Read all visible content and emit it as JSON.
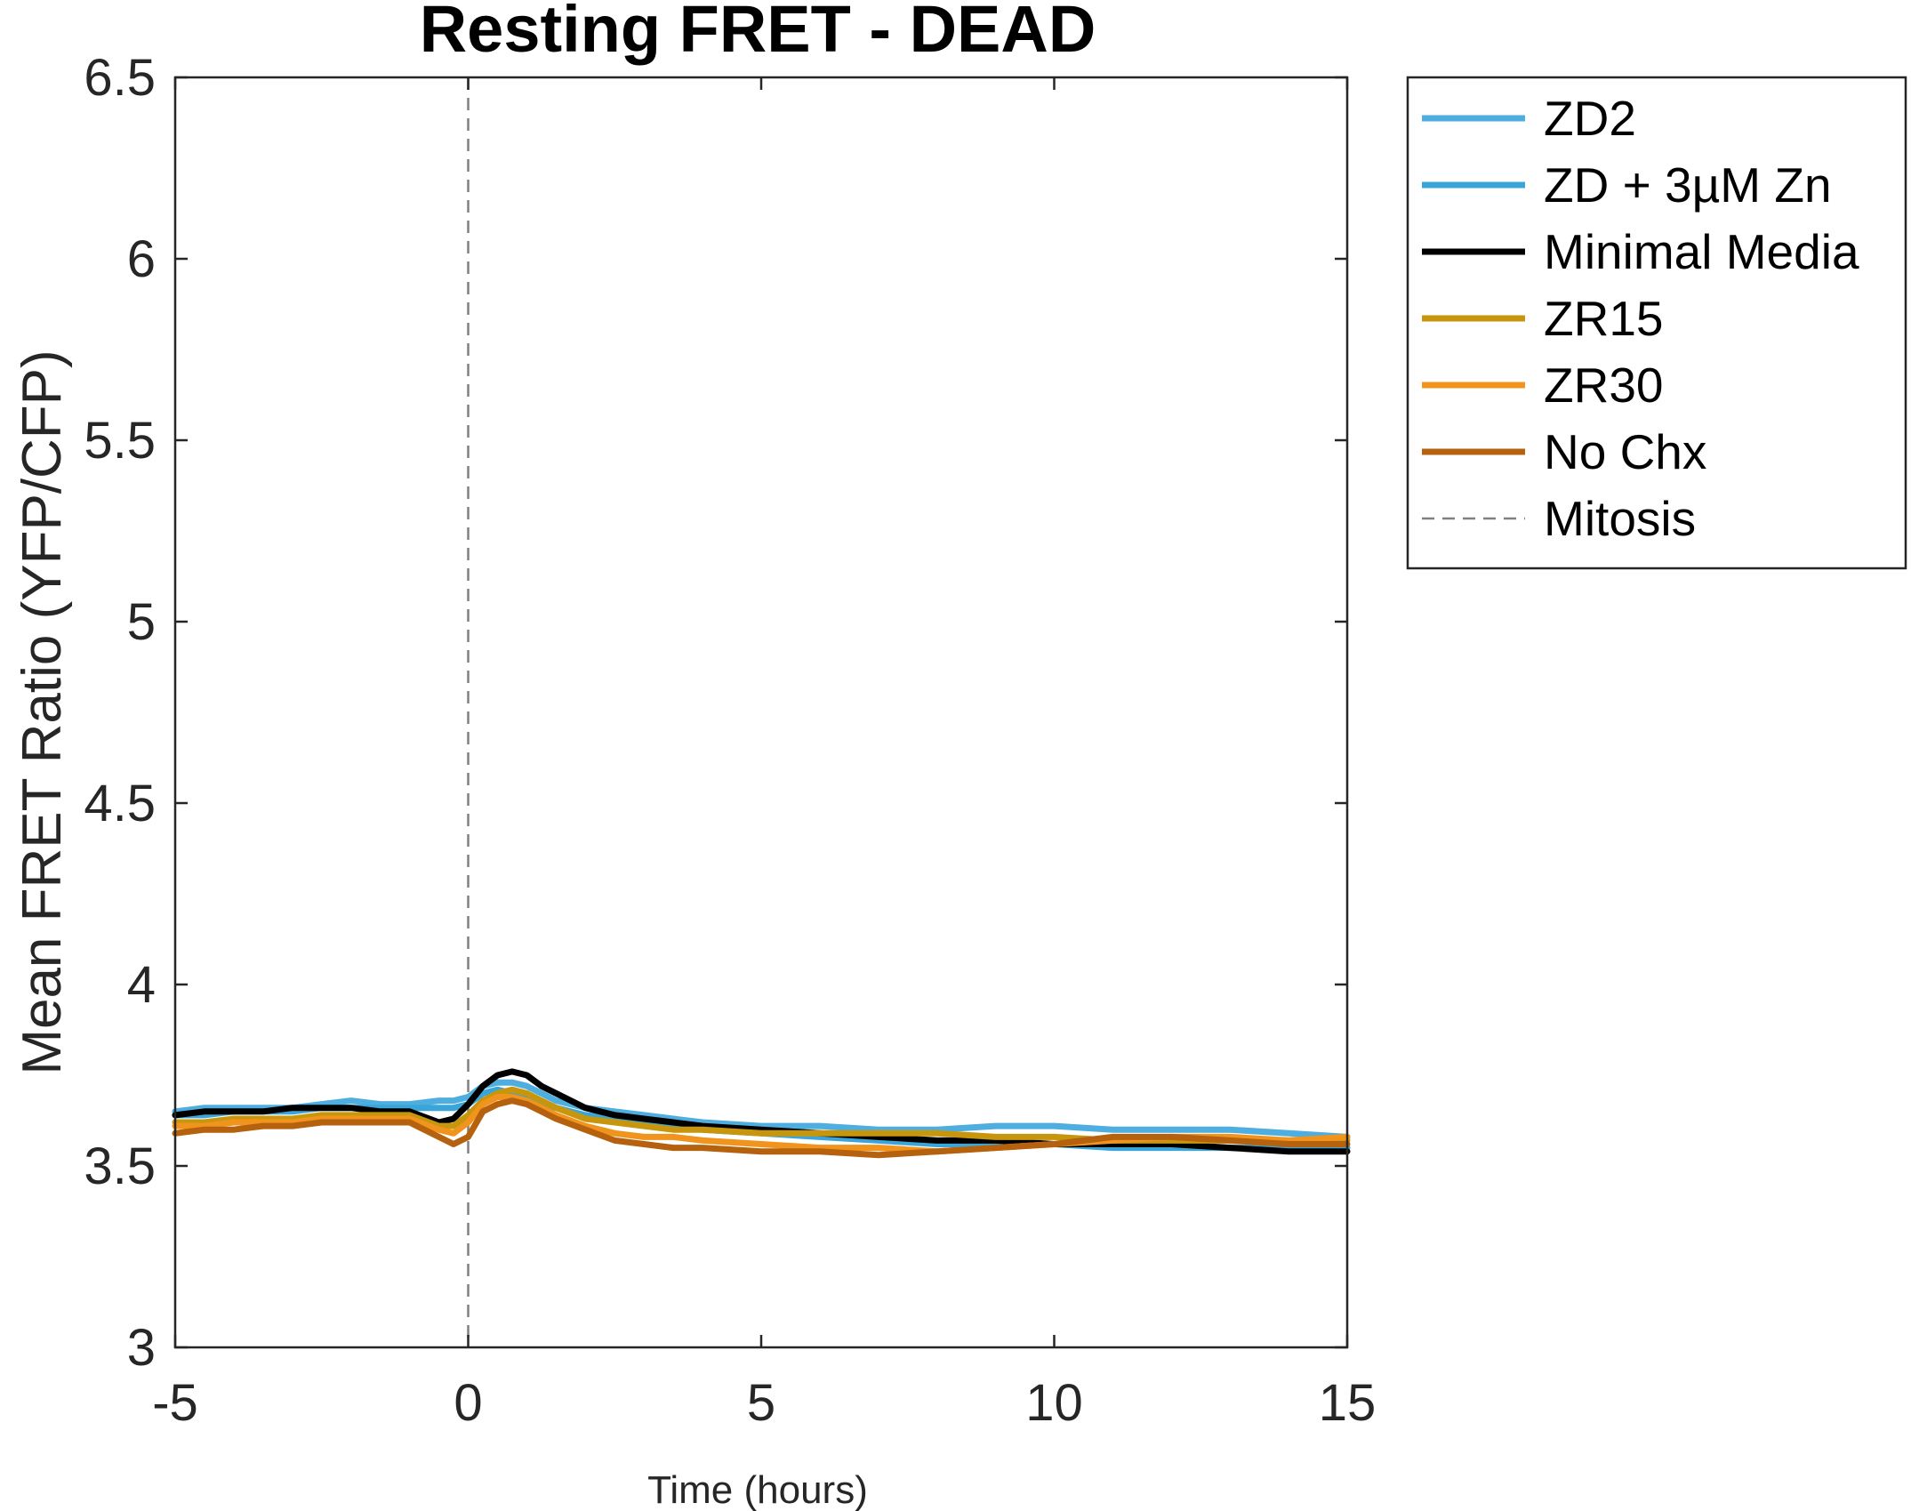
{
  "chart_data": {
    "type": "line",
    "title": "Resting FRET - DEAD",
    "xlabel": "Time (hours)",
    "ylabel": "Mean FRET Ratio (YFP/CFP)",
    "xlim": [
      -5,
      15
    ],
    "ylim": [
      3,
      6.5
    ],
    "xticks": [
      -5,
      0,
      5,
      10,
      15
    ],
    "xtick_labels": [
      "-5",
      "0",
      "5",
      "10",
      "15"
    ],
    "yticks": [
      3,
      3.5,
      4,
      4.5,
      5,
      5.5,
      6,
      6.5
    ],
    "ytick_labels": [
      "3",
      "3.5",
      "4",
      "4.5",
      "5",
      "5.5",
      "6",
      "6.5"
    ],
    "grid": false,
    "legend_position": "outside-top-right",
    "x": [
      -5,
      -4.5,
      -4,
      -3.5,
      -3,
      -2.5,
      -2,
      -1.5,
      -1,
      -0.5,
      -0.25,
      0,
      0.25,
      0.5,
      0.75,
      1,
      1.25,
      1.5,
      2,
      2.5,
      3,
      3.5,
      4,
      5,
      6,
      7,
      8,
      9,
      10,
      11,
      12,
      13,
      14,
      15
    ],
    "series": [
      {
        "name": "ZD2",
        "color": "#4DAEDF",
        "values": [
          3.65,
          3.66,
          3.66,
          3.66,
          3.66,
          3.67,
          3.68,
          3.67,
          3.67,
          3.68,
          3.68,
          3.69,
          3.72,
          3.73,
          3.73,
          3.72,
          3.7,
          3.68,
          3.66,
          3.65,
          3.64,
          3.63,
          3.62,
          3.61,
          3.61,
          3.6,
          3.6,
          3.61,
          3.61,
          3.6,
          3.6,
          3.6,
          3.59,
          3.58
        ]
      },
      {
        "name": "ZD + 3µM Zn",
        "color": "#3AA5D9",
        "values": [
          3.64,
          3.64,
          3.65,
          3.65,
          3.65,
          3.66,
          3.66,
          3.66,
          3.66,
          3.66,
          3.66,
          3.67,
          3.7,
          3.71,
          3.7,
          3.69,
          3.67,
          3.66,
          3.64,
          3.63,
          3.62,
          3.61,
          3.6,
          3.59,
          3.58,
          3.57,
          3.56,
          3.56,
          3.56,
          3.55,
          3.55,
          3.55,
          3.55,
          3.55
        ]
      },
      {
        "name": "Minimal Media",
        "color": "#000000",
        "values": [
          3.64,
          3.65,
          3.65,
          3.65,
          3.66,
          3.66,
          3.66,
          3.65,
          3.65,
          3.62,
          3.63,
          3.67,
          3.72,
          3.75,
          3.76,
          3.75,
          3.72,
          3.7,
          3.66,
          3.64,
          3.63,
          3.62,
          3.61,
          3.6,
          3.59,
          3.58,
          3.57,
          3.57,
          3.56,
          3.56,
          3.56,
          3.55,
          3.54,
          3.54
        ]
      },
      {
        "name": "ZR15",
        "color": "#C8960C",
        "values": [
          3.62,
          3.62,
          3.63,
          3.63,
          3.63,
          3.64,
          3.64,
          3.64,
          3.64,
          3.61,
          3.61,
          3.64,
          3.68,
          3.7,
          3.71,
          3.7,
          3.68,
          3.66,
          3.63,
          3.62,
          3.61,
          3.6,
          3.6,
          3.59,
          3.59,
          3.59,
          3.59,
          3.58,
          3.58,
          3.57,
          3.57,
          3.57,
          3.57,
          3.57
        ]
      },
      {
        "name": "ZR30",
        "color": "#F0941E",
        "values": [
          3.61,
          3.61,
          3.62,
          3.62,
          3.62,
          3.63,
          3.63,
          3.63,
          3.63,
          3.6,
          3.59,
          3.62,
          3.67,
          3.69,
          3.69,
          3.68,
          3.66,
          3.64,
          3.61,
          3.59,
          3.58,
          3.58,
          3.57,
          3.56,
          3.55,
          3.55,
          3.54,
          3.55,
          3.56,
          3.57,
          3.58,
          3.58,
          3.57,
          3.58
        ]
      },
      {
        "name": "No Chx",
        "color": "#B5610E",
        "values": [
          3.59,
          3.6,
          3.6,
          3.61,
          3.61,
          3.62,
          3.62,
          3.62,
          3.62,
          3.58,
          3.56,
          3.58,
          3.65,
          3.67,
          3.68,
          3.67,
          3.65,
          3.63,
          3.6,
          3.57,
          3.56,
          3.55,
          3.55,
          3.54,
          3.54,
          3.53,
          3.54,
          3.55,
          3.56,
          3.58,
          3.58,
          3.57,
          3.56,
          3.56
        ]
      }
    ],
    "annotations": [
      {
        "name": "Mitosis",
        "type": "vline",
        "x": 0,
        "style": "dashed",
        "color": "#808080"
      }
    ]
  }
}
